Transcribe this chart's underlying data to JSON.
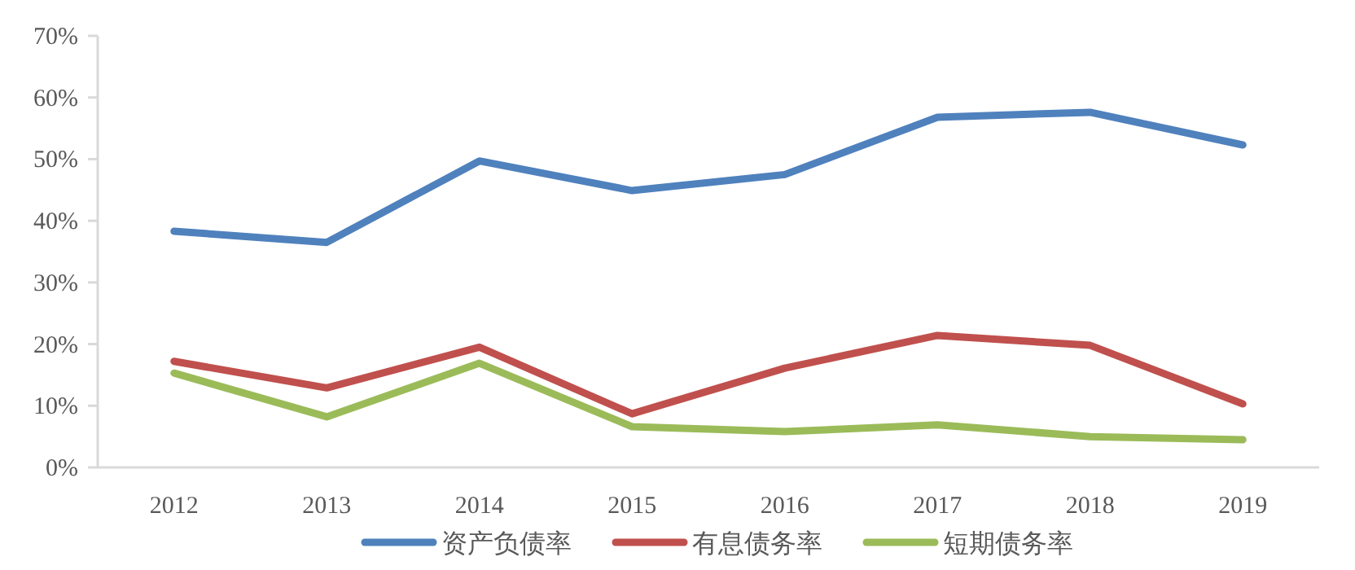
{
  "chart_data": {
    "type": "line",
    "categories": [
      "2012",
      "2013",
      "2014",
      "2015",
      "2016",
      "2017",
      "2018",
      "2019"
    ],
    "series": [
      {
        "name": "资产负债率",
        "color": "#4f81bd",
        "values": [
          38.3,
          36.5,
          49.7,
          44.9,
          47.5,
          56.8,
          57.6,
          52.3
        ]
      },
      {
        "name": "有息债务率",
        "color": "#c0504d",
        "values": [
          17.2,
          12.9,
          19.5,
          8.7,
          16.1,
          21.4,
          19.8,
          10.3
        ]
      },
      {
        "name": "短期债务率",
        "color": "#9bbb59",
        "values": [
          15.3,
          8.2,
          16.9,
          6.6,
          5.8,
          6.9,
          5.0,
          4.5
        ]
      }
    ],
    "ylim": [
      0,
      70
    ],
    "yticks": [
      {
        "value": 0,
        "label": "0%"
      },
      {
        "value": 10,
        "label": "10%"
      },
      {
        "value": 20,
        "label": "20%"
      },
      {
        "value": 30,
        "label": "30%"
      },
      {
        "value": 40,
        "label": "40%"
      },
      {
        "value": 50,
        "label": "50%"
      },
      {
        "value": 60,
        "label": "60%"
      },
      {
        "value": 70,
        "label": "70%"
      }
    ],
    "grid": false,
    "legend": "bottom",
    "marker": "none",
    "line_style": "solid"
  }
}
